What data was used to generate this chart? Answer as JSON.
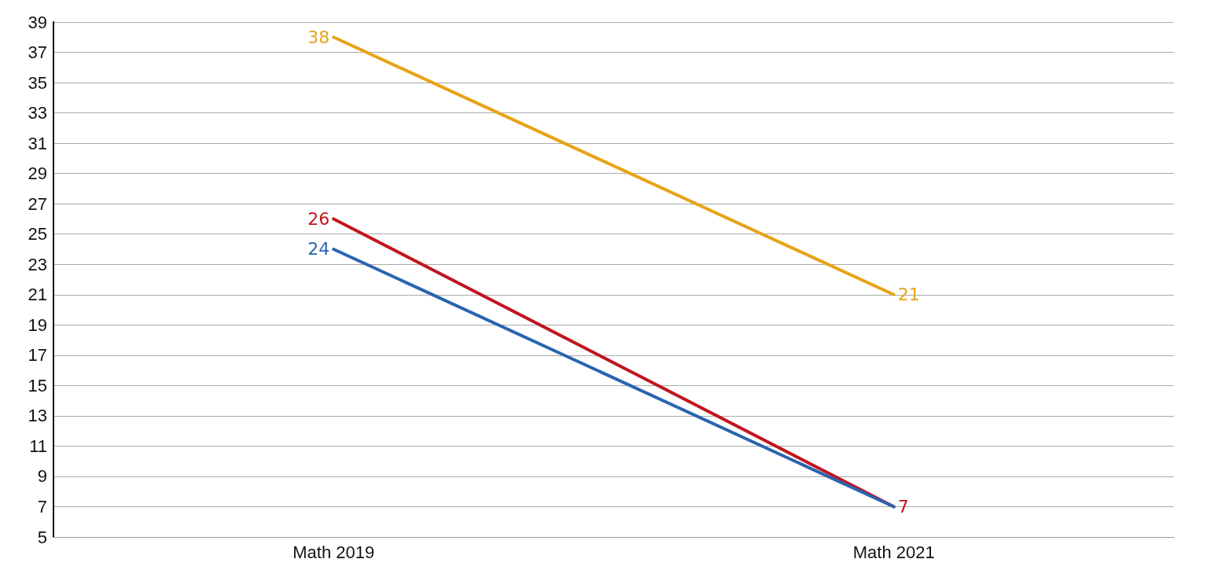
{
  "chart_data": {
    "type": "line",
    "categories": [
      "Math 2019",
      "Math 2021"
    ],
    "series": [
      {
        "color": "#e8a317",
        "values": [
          38,
          21
        ],
        "value_labels": [
          "38",
          "21"
        ]
      },
      {
        "color": "#c0151f",
        "values": [
          26,
          7
        ],
        "value_labels": [
          "26",
          "7"
        ]
      },
      {
        "color": "#2a64b0",
        "values": [
          24,
          7
        ],
        "value_labels": [
          "24",
          null
        ]
      }
    ],
    "ylim": [
      5,
      39
    ],
    "yticks": [
      5,
      7,
      9,
      11,
      13,
      15,
      17,
      19,
      21,
      23,
      25,
      27,
      29,
      31,
      33,
      35,
      37,
      39
    ],
    "grid": "y",
    "marker": "none",
    "line_style": "solid"
  }
}
